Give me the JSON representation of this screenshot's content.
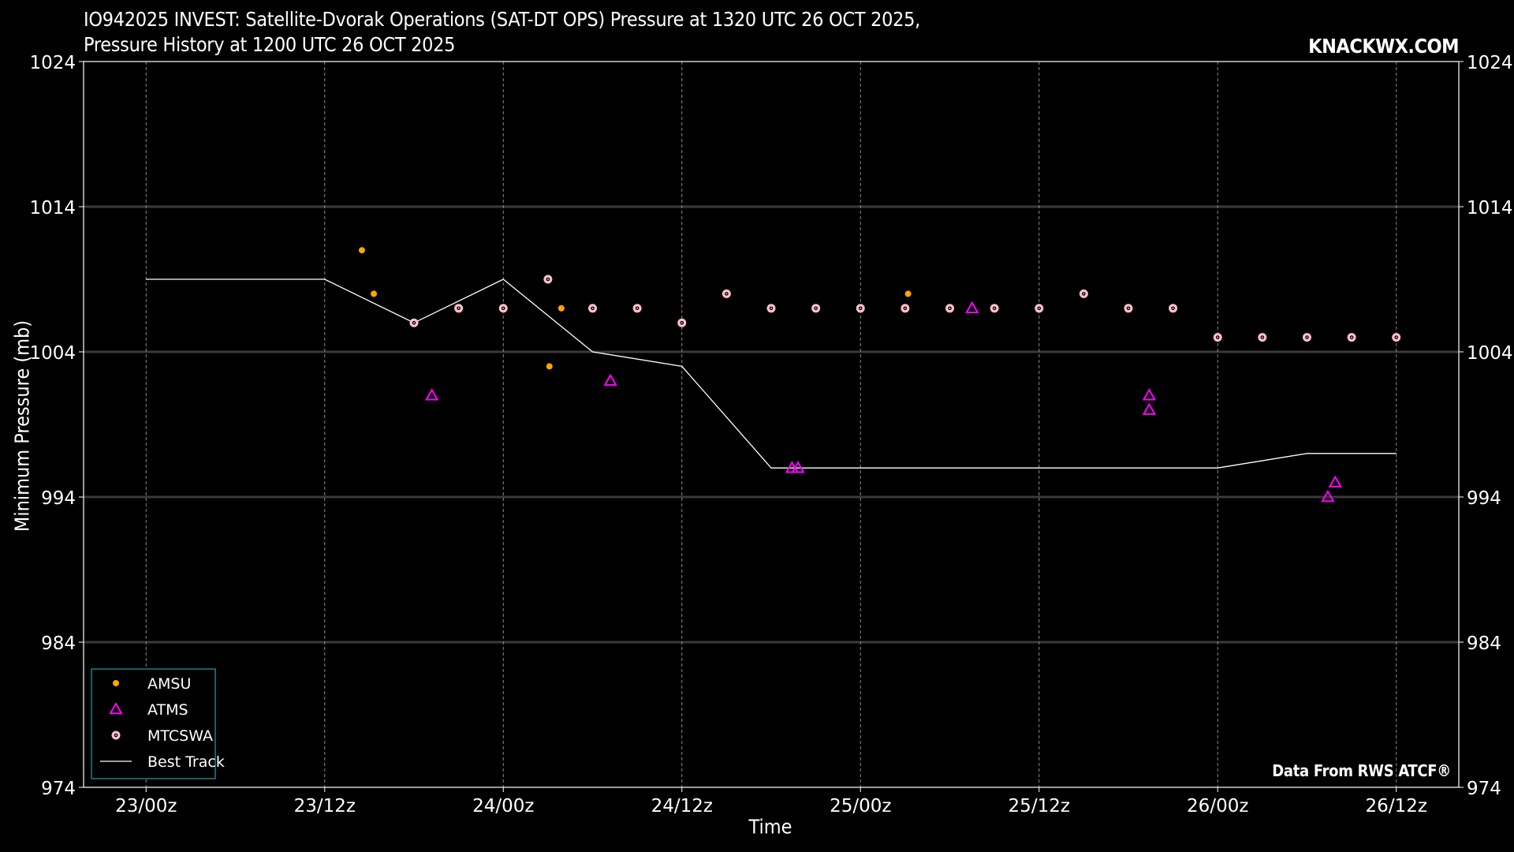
{
  "header": {
    "title_line1": "IO942025 INVEST: Satellite-Dvorak Operations (SAT-DT OPS) Pressure at 1320 UTC 26 OCT 2025,",
    "title_line2": "Pressure History at 1200 UTC 26 OCT 2025",
    "brand": "KNACKWX.COM"
  },
  "footer": {
    "credit": "Data From RWS ATCF®"
  },
  "chart_data": {
    "type": "scatter",
    "xlabel": "Time",
    "ylabel": "Minimum Pressure (mb)",
    "x_unit": "hours from 23/00z",
    "xlim": [
      -4.2,
      88.2
    ],
    "ylim": [
      974,
      1024
    ],
    "x_ticks": [
      {
        "x": 0,
        "label": "23/00z"
      },
      {
        "x": 12,
        "label": "23/12z"
      },
      {
        "x": 24,
        "label": "24/00z"
      },
      {
        "x": 36,
        "label": "24/12z"
      },
      {
        "x": 48,
        "label": "25/00z"
      },
      {
        "x": 60,
        "label": "25/12z"
      },
      {
        "x": 72,
        "label": "26/00z"
      },
      {
        "x": 84,
        "label": "26/12z"
      }
    ],
    "y_ticks": [
      974,
      984,
      994,
      1004,
      1014,
      1024
    ],
    "grid": true,
    "legend_position": "bottom-left",
    "series": [
      {
        "name": "AMSU",
        "marker": "dot",
        "color": "#ffa500",
        "points": [
          [
            14.5,
            1011
          ],
          [
            15.3,
            1008
          ],
          [
            27.1,
            1003
          ],
          [
            27.9,
            1007
          ],
          [
            51.2,
            1008
          ]
        ]
      },
      {
        "name": "ATMS",
        "marker": "triangle",
        "color": "#ff00ff",
        "points": [
          [
            19.2,
            1001
          ],
          [
            31.2,
            1002
          ],
          [
            43.4,
            996
          ],
          [
            43.8,
            996
          ],
          [
            55.5,
            1007
          ],
          [
            67.4,
            1001
          ],
          [
            67.4,
            1000
          ],
          [
            79.4,
            994
          ],
          [
            79.9,
            995
          ]
        ]
      },
      {
        "name": "MTCSWA",
        "marker": "target",
        "color": "#ffc0cb",
        "points": [
          [
            18,
            1006
          ],
          [
            21,
            1007
          ],
          [
            24,
            1007
          ],
          [
            27,
            1009
          ],
          [
            30,
            1007
          ],
          [
            33,
            1007
          ],
          [
            36,
            1006
          ],
          [
            39,
            1008
          ],
          [
            42,
            1007
          ],
          [
            45,
            1007
          ],
          [
            48,
            1007
          ],
          [
            51,
            1007
          ],
          [
            54,
            1007
          ],
          [
            57,
            1007
          ],
          [
            60,
            1007
          ],
          [
            63,
            1008
          ],
          [
            66,
            1007
          ],
          [
            69,
            1007
          ],
          [
            72,
            1005
          ],
          [
            75,
            1005
          ],
          [
            78,
            1005
          ],
          [
            81,
            1005
          ],
          [
            84,
            1005
          ]
        ]
      },
      {
        "name": "Best Track",
        "marker": "line",
        "color": "#ffffff",
        "points": [
          [
            0,
            1009
          ],
          [
            12,
            1009
          ],
          [
            18,
            1006
          ],
          [
            24,
            1009
          ],
          [
            30,
            1004
          ],
          [
            36,
            1003
          ],
          [
            42,
            996
          ],
          [
            72,
            996
          ],
          [
            78,
            997
          ],
          [
            84,
            997
          ]
        ]
      }
    ]
  }
}
